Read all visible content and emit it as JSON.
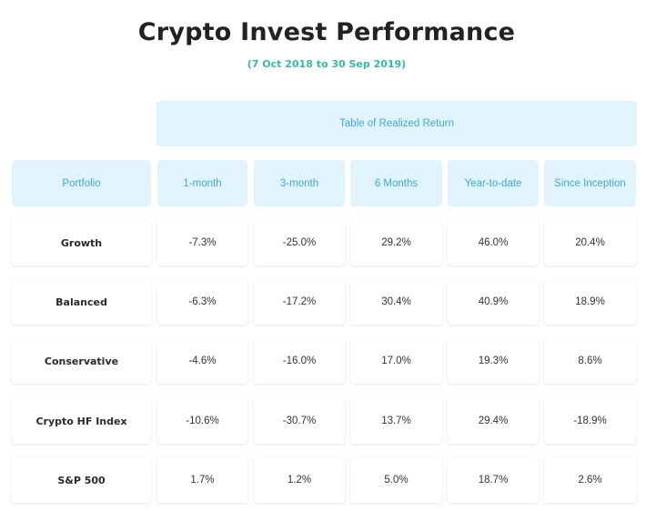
{
  "title": "Crypto Invest Performance",
  "subtitle": "(7 Oct 2018 to 30 Sep 2019)",
  "table": {
    "group_header": "Table of Realized Return",
    "columns": [
      "Portfolio",
      "1-month",
      "3-month",
      "6 Months",
      "Year-to-date",
      "Since Inception"
    ],
    "rows": [
      {
        "name": "Growth",
        "values": [
          "-7.3%",
          "-25.0%",
          "29.2%",
          "46.0%",
          "20.4%"
        ]
      },
      {
        "name": "Balanced",
        "values": [
          "-6.3%",
          "-17.2%",
          "30.4%",
          "40.9%",
          "18.9%"
        ]
      },
      {
        "name": "Conservative",
        "values": [
          "-4.6%",
          "-16.0%",
          "17.0%",
          "19.3%",
          "8.6%"
        ]
      },
      {
        "name": "Crypto HF Index",
        "values": [
          "-10.6%",
          "-30.7%",
          "13.7%",
          "29.4%",
          "-18.9%"
        ]
      },
      {
        "name": "S&P 500",
        "values": [
          "1.7%",
          "1.2%",
          "5.0%",
          "18.7%",
          "2.6%"
        ]
      }
    ]
  },
  "colors": {
    "header_bg": "#e1f3fb",
    "header_text": "#3ba9de",
    "subtitle": "#2fbf9e",
    "title": "#222222"
  }
}
